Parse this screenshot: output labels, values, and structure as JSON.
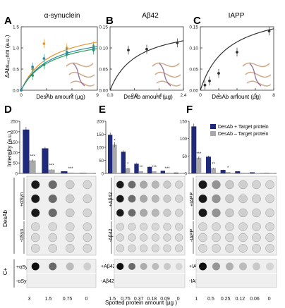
{
  "figure": {
    "footer_xlabel": "Spotted protein amount (µg )",
    "intensity_ylabel": "Intensity (a.u.)",
    "desab_row_label": "DesAb",
    "cplus_label": "C+"
  },
  "colors": {
    "plus": "#1f2a7a",
    "minus": "#a9a9a9",
    "curve": "#333333",
    "green": "#2a9d5a",
    "orange": "#e8962e",
    "teal": "#2a8fa0",
    "dot_dark": "#222222",
    "dot_light": "#c9c9c9",
    "panel_bg": "#efefef"
  },
  "chart_data": [
    {
      "panel": "A",
      "type": "scatter",
      "title": "α-synuclein",
      "ylabel": "ΔAbs₄₆₂nm (a.u.)",
      "xlabel": "DesAb amount (µg)",
      "xlim": [
        0,
        10
      ],
      "ylim": [
        0,
        1.5
      ],
      "xticks": [
        "0",
        "3",
        "6",
        "9"
      ],
      "yticks": [
        "0.0",
        "0.5",
        "1.0",
        "1.5"
      ],
      "series": [
        {
          "color": "orange",
          "x": [
            0,
            1.5,
            3,
            6,
            9.5
          ],
          "y": [
            0,
            0.5,
            1.1,
            1.0,
            1.05
          ]
        },
        {
          "color": "green",
          "x": [
            0,
            1.5,
            3,
            6,
            9.5
          ],
          "y": [
            0,
            0.35,
            0.6,
            0.85,
            0.95
          ]
        },
        {
          "color": "teal",
          "x": [
            0,
            1.5,
            3,
            6,
            9.5
          ],
          "y": [
            0,
            0.55,
            0.75,
            0.9,
            1.0
          ]
        }
      ]
    },
    {
      "panel": "B",
      "type": "scatter",
      "title": "Aβ42",
      "xlabel": "DesAb amount (µg)",
      "xlim": [
        0,
        2.4
      ],
      "ylim": [
        0,
        0.15
      ],
      "xticks": [
        "0.0",
        "0.8",
        "1.6",
        "2.4"
      ],
      "yticks": [
        "0.00",
        "0.05",
        "0.10",
        "0.15"
      ],
      "x": [
        0.6,
        1.2,
        2.2
      ],
      "y": [
        0.095,
        0.097,
        0.112
      ]
    },
    {
      "panel": "C",
      "type": "scatter",
      "title": "IAPP",
      "xlabel": "DesAb amount (µg)",
      "xlim": [
        0,
        8
      ],
      "ylim": [
        0,
        0.15
      ],
      "xticks": [
        "0",
        "2",
        "4",
        "6",
        "8"
      ],
      "yticks": [
        "0.00",
        "0.05",
        "0.10",
        "0.15"
      ],
      "x": [
        0.5,
        1.0,
        2.0,
        4.0,
        7.5
      ],
      "y": [
        0.012,
        0.022,
        0.04,
        0.09,
        0.14
      ]
    },
    {
      "panel": "D",
      "type": "bar",
      "ylim": [
        0,
        250
      ],
      "yticks": [
        "0",
        "50",
        "100",
        "150",
        "200",
        "250"
      ],
      "categories": [
        "3",
        "1.5",
        "0.75",
        "0"
      ],
      "legend": [
        "DesAb + Target protein",
        "DesAb – Target protein"
      ],
      "series": [
        {
          "name": "DesAb + Target protein",
          "values": [
            210,
            120,
            10,
            2
          ]
        },
        {
          "name": "DesAb – Target protein",
          "values": [
            62,
            18,
            4,
            1
          ]
        }
      ],
      "annotations": [
        "***",
        "***",
        "***"
      ],
      "row_labels": [
        "+αSyn",
        "-αSyn"
      ],
      "control_labels": [
        "+αSyn",
        "-αSyn"
      ]
    },
    {
      "panel": "E",
      "type": "bar",
      "ylim": [
        0,
        200
      ],
      "yticks": [
        "0",
        "50",
        "100",
        "150",
        "200"
      ],
      "categories": [
        "1.5",
        "0.75",
        "0.37",
        "0.18",
        "0.09",
        "0"
      ],
      "series": [
        {
          "name": "DesAb + Target protein",
          "values": [
            148,
            83,
            37,
            25,
            10,
            3
          ]
        },
        {
          "name": "DesAb – Target protein",
          "values": [
            110,
            20,
            8,
            8,
            3,
            1
          ]
        }
      ],
      "annotations": [
        "*",
        "*",
        "**",
        "***",
        "***"
      ],
      "row_labels": [
        "+Aβ42",
        "-Aβ42"
      ],
      "control_labels": [
        "+Aβ42",
        "-Aβ42"
      ]
    },
    {
      "panel": "F",
      "type": "bar",
      "ylim": [
        0,
        150
      ],
      "yticks": [
        "0",
        "50",
        "100",
        "150"
      ],
      "categories": [
        "1",
        "0.5",
        "0.25",
        "0.12",
        "0.06",
        "0"
      ],
      "series": [
        {
          "name": "DesAb + Target protein",
          "values": [
            135,
            48,
            10,
            6,
            3,
            1
          ]
        },
        {
          "name": "DesAb – Target protein",
          "values": [
            45,
            15,
            4,
            2,
            1,
            1
          ]
        }
      ],
      "annotations": [
        "***",
        "**",
        "*"
      ],
      "row_labels": [
        "+IAPP",
        "-IAPP"
      ],
      "control_labels": [
        "+IAPP",
        "-IAPP"
      ]
    }
  ]
}
